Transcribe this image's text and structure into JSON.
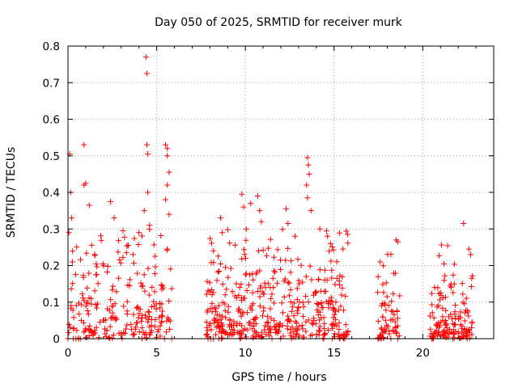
{
  "chart_data": {
    "type": "scatter",
    "title": "Day 050 of 2025, SRMTID for receiver murk",
    "xlabel": "GPS time / hours",
    "ylabel": "SRMTID / TECUs",
    "xlim": [
      0,
      24
    ],
    "ylim": [
      0,
      0.8
    ],
    "xticks": [
      "0",
      "5",
      "10",
      "15",
      "20"
    ],
    "yticks": [
      "0",
      "0.1",
      "0.2",
      "0.3",
      "0.4",
      "0.5",
      "0.6",
      "0.7",
      "0.8"
    ],
    "grid": true,
    "marker": "plus",
    "series": [
      {
        "name": "SRMTID",
        "color": "#ff0000",
        "segments": [
          {
            "x": [
              0.0,
              5.9
            ],
            "density": 230,
            "base": 0.09
          },
          {
            "x": [
              7.8,
              15.8
            ],
            "density": 420,
            "base": 0.11
          },
          {
            "x": [
              17.4,
              18.7
            ],
            "density": 60,
            "base": 0.07
          },
          {
            "x": [
              20.4,
              22.8
            ],
            "density": 140,
            "base": 0.07
          }
        ],
        "points": [
          [
            0.05,
            0.29
          ],
          [
            0.1,
            0.505
          ],
          [
            0.15,
            0.4
          ],
          [
            0.2,
            0.33
          ],
          [
            0.25,
            0.21
          ],
          [
            0.9,
            0.53
          ],
          [
            0.9,
            0.42
          ],
          [
            1.0,
            0.425
          ],
          [
            1.2,
            0.365
          ],
          [
            1.5,
            0.23
          ],
          [
            2.4,
            0.375
          ],
          [
            2.6,
            0.33
          ],
          [
            3.1,
            0.295
          ],
          [
            3.4,
            0.255
          ],
          [
            4.0,
            0.29
          ],
          [
            4.3,
            0.35
          ],
          [
            4.4,
            0.77
          ],
          [
            4.45,
            0.725
          ],
          [
            4.45,
            0.53
          ],
          [
            4.5,
            0.505
          ],
          [
            4.5,
            0.4
          ],
          [
            4.6,
            0.31
          ],
          [
            5.5,
            0.53
          ],
          [
            5.6,
            0.52
          ],
          [
            5.6,
            0.5
          ],
          [
            5.7,
            0.455
          ],
          [
            5.6,
            0.42
          ],
          [
            5.5,
            0.38
          ],
          [
            5.7,
            0.34
          ],
          [
            9.8,
            0.395
          ],
          [
            9.9,
            0.36
          ],
          [
            10.3,
            0.37
          ],
          [
            10.7,
            0.39
          ],
          [
            10.8,
            0.35
          ],
          [
            10.9,
            0.32
          ],
          [
            12.3,
            0.355
          ],
          [
            12.4,
            0.315
          ],
          [
            13.5,
            0.495
          ],
          [
            13.55,
            0.475
          ],
          [
            13.6,
            0.45
          ],
          [
            13.45,
            0.42
          ],
          [
            13.5,
            0.385
          ],
          [
            13.7,
            0.35
          ],
          [
            14.2,
            0.3
          ],
          [
            15.5,
            0.245
          ],
          [
            17.6,
            0.21
          ],
          [
            18.5,
            0.27
          ],
          [
            18.6,
            0.265
          ],
          [
            22.3,
            0.315
          ],
          [
            22.6,
            0.245
          ],
          [
            22.7,
            0.23
          ],
          [
            8.2,
            0.24
          ],
          [
            8.6,
            0.33
          ],
          [
            8.7,
            0.29
          ],
          [
            12.8,
            0.28
          ],
          [
            14.8,
            0.26
          ]
        ],
        "zero_points": [
          0.0,
          0.3,
          0.45,
          0.6,
          0.7,
          5.85,
          7.9,
          8.05,
          8.2,
          8.5,
          8.65,
          9.7,
          11.5,
          12.6,
          15.3,
          15.6,
          17.5,
          17.65,
          18.2,
          18.6,
          20.5,
          20.6,
          21.7,
          22.5
        ]
      }
    ]
  }
}
